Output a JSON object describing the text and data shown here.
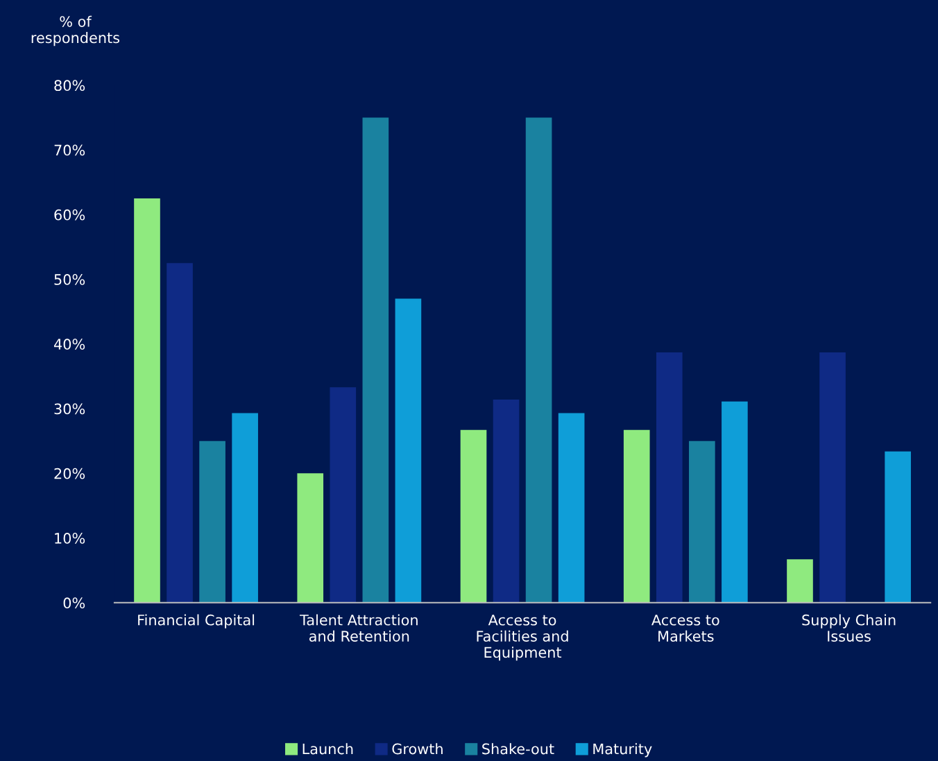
{
  "chart_data": {
    "type": "bar",
    "ylabel": "% of\nrespondents",
    "categories": [
      "Financial Capital",
      "Talent Attraction\nand Retention",
      "Access to\nFacilities and\nEquipment",
      "Access to\nMarkets",
      "Supply Chain\nIssues"
    ],
    "series": [
      {
        "name": "Launch",
        "color": "#8fea7f",
        "values": [
          62.5,
          20,
          26.7,
          26.7,
          6.7
        ]
      },
      {
        "name": "Growth",
        "color": "#0f2a85",
        "values": [
          52.5,
          33.3,
          31.4,
          38.7,
          38.7
        ]
      },
      {
        "name": "Shake-out",
        "color": "#1a82a0",
        "values": [
          25,
          75,
          75,
          25,
          0
        ]
      },
      {
        "name": "Maturity",
        "color": "#0f9ed8",
        "values": [
          29.3,
          47,
          29.3,
          31.1,
          23.4
        ]
      }
    ],
    "ylim": [
      0,
      80
    ],
    "yticks": [
      {
        "value": 0,
        "label": "0%"
      },
      {
        "value": 10,
        "label": "10%"
      },
      {
        "value": 20,
        "label": "20%"
      },
      {
        "value": 30,
        "label": "30%"
      },
      {
        "value": 40,
        "label": "40%"
      },
      {
        "value": 50,
        "label": "50%"
      },
      {
        "value": 60,
        "label": "60%"
      },
      {
        "value": 70,
        "label": "70%"
      },
      {
        "value": 80,
        "label": "80%"
      }
    ],
    "grid": false,
    "legend": "bottom"
  }
}
